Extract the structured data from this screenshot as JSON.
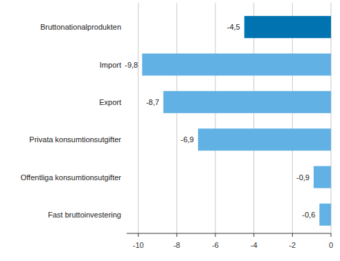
{
  "chart_data": {
    "type": "bar",
    "orientation": "horizontal",
    "categories": [
      "Bruttonationalprodukten",
      "Import",
      "Export",
      "Privata konsumtionsutgifter",
      "Offentliga konsumtionsutgifter",
      "Fast bruttoinvestering"
    ],
    "values": [
      -4.5,
      -9.8,
      -8.7,
      -6.9,
      -0.9,
      -0.6
    ],
    "value_labels": [
      "-4,5",
      "-9,8",
      "-8,7",
      "-6,9",
      "-0,9",
      "-0,6"
    ],
    "colors": [
      "#0073b0",
      "#62b1e4",
      "#62b1e4",
      "#62b1e4",
      "#62b1e4",
      "#62b1e4"
    ],
    "data_labels": true,
    "xlim": [
      -10.6,
      0
    ],
    "xticks": [
      -10,
      -8,
      -6,
      -4,
      -2,
      0
    ],
    "grid": true
  }
}
